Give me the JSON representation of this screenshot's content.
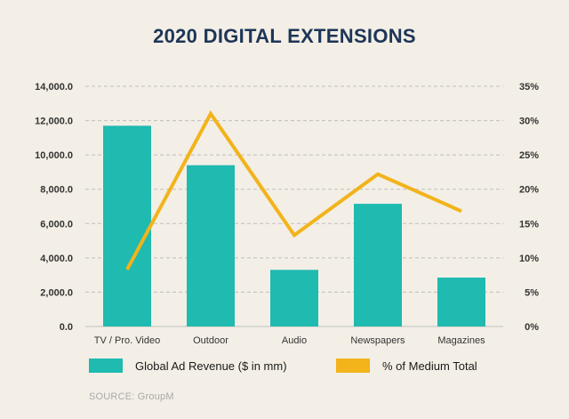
{
  "colors": {
    "bar": "#1fbab0",
    "line": "#f2b31b",
    "grid": "#bfbfbf",
    "axis_text": "#333333",
    "title": "#1d3557"
  },
  "chart_data": {
    "type": "bar",
    "title": "2020 DIGITAL EXTENSIONS",
    "categories": [
      "TV / Pro. Video",
      "Outdoor",
      "Audio",
      "Newspapers",
      "Magazines"
    ],
    "series": [
      {
        "name": "Global Ad Revenue ($ in mm)",
        "type": "bar",
        "axis": "left",
        "values": [
          11700,
          9400,
          3300,
          7150,
          2850
        ]
      },
      {
        "name": "% of Medium Total",
        "type": "line",
        "axis": "right",
        "values": [
          8.3,
          31.0,
          13.3,
          22.2,
          16.8
        ]
      }
    ],
    "y_left": {
      "ylim": [
        0,
        14000
      ],
      "ticks": [
        "0.0",
        "2,000.0",
        "4,000.0",
        "6,000.0",
        "8,000.0",
        "10,000.0",
        "12,000.0",
        "14,000.0"
      ]
    },
    "y_right": {
      "ylim": [
        0,
        35
      ],
      "ticks": [
        "0%",
        "5%",
        "10%",
        "15%",
        "20%",
        "25%",
        "30%",
        "35%"
      ]
    },
    "grid": true,
    "legend_position": "bottom"
  },
  "source": "SOURCE: GroupM"
}
